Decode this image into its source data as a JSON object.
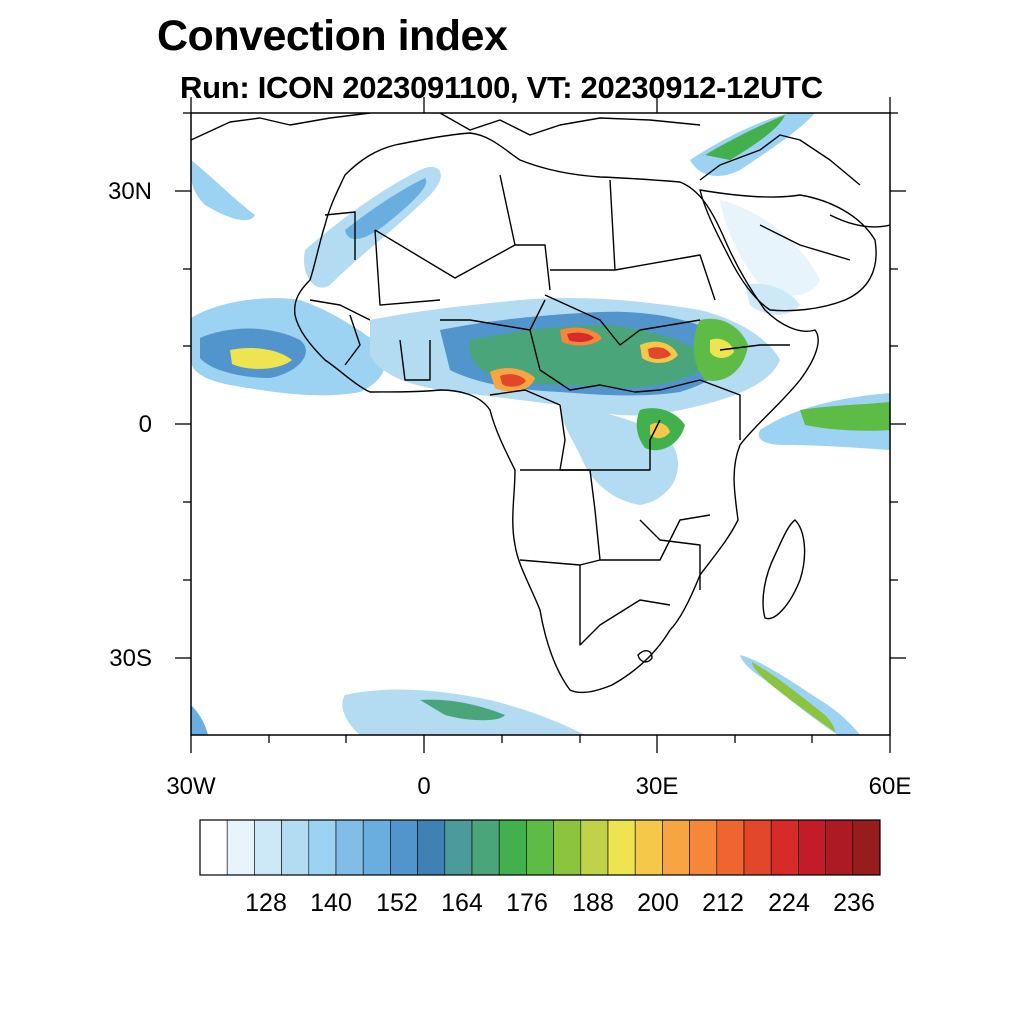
{
  "title": "Convection index",
  "subtitle": "Run: ICON 2023091100,  VT: 20230912-12UTC",
  "map": {
    "region": "Africa",
    "lon_range": [
      -30,
      60
    ],
    "lat_range": [
      -40,
      40
    ],
    "lat_labels": [
      "30N",
      "0",
      "30S"
    ],
    "lon_labels": [
      "30W",
      "0",
      "30E",
      "60E"
    ],
    "land_fill": "#ffffff",
    "border_color": "#000000"
  },
  "colorbar": {
    "labels": [
      "128",
      "140",
      "152",
      "164",
      "176",
      "188",
      "200",
      "212",
      "224",
      "236"
    ],
    "colors": [
      "#ffffff",
      "#e8f4fb",
      "#cde8f6",
      "#b3dcf3",
      "#9cd3f2",
      "#82bde8",
      "#6aaee0",
      "#5295cc",
      "#3f80b5",
      "#4a9b9a",
      "#4aa67a",
      "#43b04e",
      "#5ebc46",
      "#8cc43e",
      "#bfd24a",
      "#eee450",
      "#f6c84a",
      "#f7a542",
      "#f5873a",
      "#ee6530",
      "#e2462b",
      "#d62b28",
      "#c31c28",
      "#ad1a24",
      "#961c1e"
    ]
  }
}
